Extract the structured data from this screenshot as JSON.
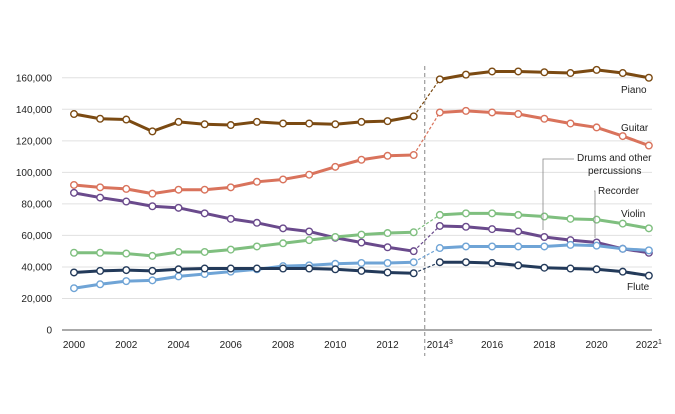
{
  "chart_data": {
    "type": "line",
    "title": "",
    "xlabel": "",
    "ylabel": "",
    "ylim": [
      0,
      170000
    ],
    "grid": true,
    "y_ticks": [
      0,
      20000,
      40000,
      60000,
      80000,
      100000,
      120000,
      140000,
      160000
    ],
    "y_tick_labels": [
      "0",
      "20,000",
      "40,000",
      "60,000",
      "80,000",
      "100,000",
      "120,000",
      "140,000",
      "160,000"
    ],
    "x_ticks": [
      {
        "label": "2000",
        "sup": ""
      },
      {
        "label": "2002",
        "sup": ""
      },
      {
        "label": "2004",
        "sup": ""
      },
      {
        "label": "2006",
        "sup": ""
      },
      {
        "label": "2008",
        "sup": ""
      },
      {
        "label": "2010",
        "sup": ""
      },
      {
        "label": "2012",
        "sup": ""
      },
      {
        "label": "2014",
        "sup": "3"
      },
      {
        "label": "2016",
        "sup": ""
      },
      {
        "label": "2018",
        "sup": ""
      },
      {
        "label": "2020",
        "sup": ""
      },
      {
        "label": "2022",
        "sup": "1"
      }
    ],
    "x": [
      2000,
      2001,
      2002,
      2003,
      2004,
      2005,
      2006,
      2007,
      2008,
      2009,
      2010,
      2011,
      2012,
      2013,
      2014,
      2015,
      2016,
      2017,
      2018,
      2019,
      2020,
      2021,
      2022
    ],
    "break_after": 2013,
    "series": [
      {
        "name": "Piano",
        "color": "#7b4a12",
        "values": [
          137000,
          134000,
          133500,
          126000,
          132000,
          130500,
          130000,
          132000,
          131000,
          131000,
          130500,
          132000,
          132500,
          135500,
          159000,
          162000,
          164000,
          164000,
          163500,
          163000,
          165000,
          163000,
          160000
        ]
      },
      {
        "name": "Guitar",
        "color": "#d9735c",
        "values": [
          92000,
          90500,
          89500,
          86500,
          89000,
          89000,
          90500,
          94000,
          95500,
          98500,
          103500,
          108000,
          110500,
          111000,
          138000,
          139000,
          138000,
          137000,
          134000,
          131000,
          128500,
          123000,
          117000
        ]
      },
      {
        "name": "Drums and other percussions",
        "color": "#6a4a8c",
        "values": [
          87000,
          84000,
          81500,
          78500,
          77500,
          74000,
          70500,
          68000,
          64500,
          62500,
          58500,
          55500,
          52500,
          50000,
          66000,
          65500,
          64000,
          62500,
          59000,
          57000,
          55500,
          51500,
          49000
        ]
      },
      {
        "name": "Recorder",
        "color": "#6fa4d6",
        "values": [
          26500,
          29000,
          31000,
          31500,
          34000,
          35500,
          37000,
          38500,
          40500,
          41000,
          42000,
          42500,
          42500,
          43000,
          52000,
          53000,
          53000,
          53000,
          53000,
          54000,
          53500,
          51500,
          50500
        ]
      },
      {
        "name": "Violin",
        "color": "#7fbf7f",
        "values": [
          49000,
          49000,
          48500,
          47000,
          49500,
          49500,
          51000,
          53000,
          55000,
          57000,
          59000,
          60500,
          61500,
          62000,
          73000,
          74000,
          74000,
          73000,
          72000,
          70500,
          70000,
          67500,
          64500
        ]
      },
      {
        "name": "Flute",
        "color": "#233a5a",
        "values": [
          36500,
          37500,
          38000,
          37500,
          38500,
          39000,
          39000,
          39000,
          39000,
          39000,
          38500,
          37500,
          36500,
          36000,
          43000,
          43000,
          42500,
          41000,
          39500,
          39000,
          38500,
          37000,
          34500
        ]
      }
    ],
    "labels": {
      "piano": "Piano",
      "guitar": "Guitar",
      "drums_line1": "Drums and other",
      "drums_line2": "percussions",
      "recorder": "Recorder",
      "violin": "Violin",
      "flute": "Flute"
    }
  }
}
